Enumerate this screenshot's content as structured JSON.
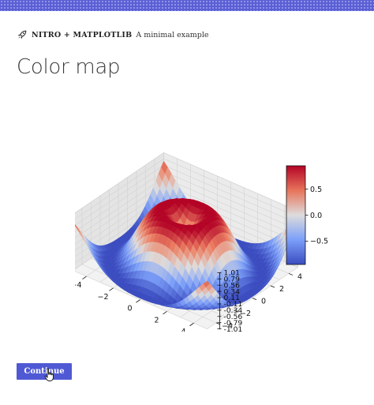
{
  "header": {
    "brand": "NITRO + MATPLOTLIB",
    "subtitle": "A minimal example",
    "icon": "rocket-icon"
  },
  "page": {
    "title": "Color map"
  },
  "chart_data": {
    "type": "surface",
    "colormap": "coolwarm",
    "z_function": "sin(sqrt(x^2 + y^2))",
    "x_ticks": [
      "−4",
      "−2",
      "0",
      "2",
      "4"
    ],
    "y_ticks": [
      "−4",
      "−2",
      "0",
      "2",
      "4"
    ],
    "z_ticks": [
      "1.01",
      "0.79",
      "0.56",
      "0.34",
      "0.11",
      "-0.11",
      "-0.34",
      "-0.56",
      "-0.79",
      "-1.01"
    ],
    "zlim": [
      -1.01,
      1.01
    ],
    "colorbar": {
      "ticks": [
        "0.5",
        "0.0",
        "−0.5"
      ],
      "values": [
        0.5,
        0.0,
        -0.5
      ],
      "range": [
        -0.95,
        0.95
      ]
    },
    "grid": true
  },
  "actions": {
    "continue_label": "Continue"
  },
  "colors": {
    "accent": "#5059d4",
    "topbar": "#5a5fd6"
  }
}
